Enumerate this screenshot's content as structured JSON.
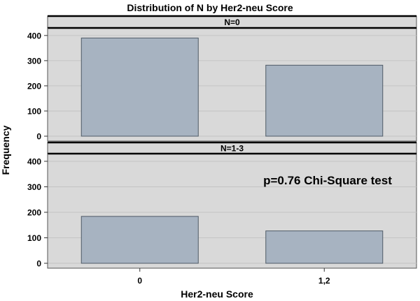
{
  "chart_data": {
    "type": "bar",
    "title": "Distribution of N by Her2-neu Score",
    "xlabel": "Her2-neu Score",
    "ylabel": "Frequency",
    "categories": [
      "0",
      "1,2"
    ],
    "ylim": [
      0,
      430
    ],
    "yticks": [
      0,
      100,
      200,
      300,
      400
    ],
    "panels": [
      {
        "label": "N=0",
        "values": [
          390,
          282
        ]
      },
      {
        "label": "N=1-3",
        "values": [
          184,
          127
        ]
      }
    ],
    "annotation": "p=0.76 Chi-Square test",
    "grid": true,
    "colors": {
      "panel_background": "#d9d9d9",
      "strip_background": "#d9d9d9",
      "bar_fill": "#a7b3c1",
      "bar_stroke": "#4f5a66",
      "grid": "#c4c4c4"
    }
  }
}
